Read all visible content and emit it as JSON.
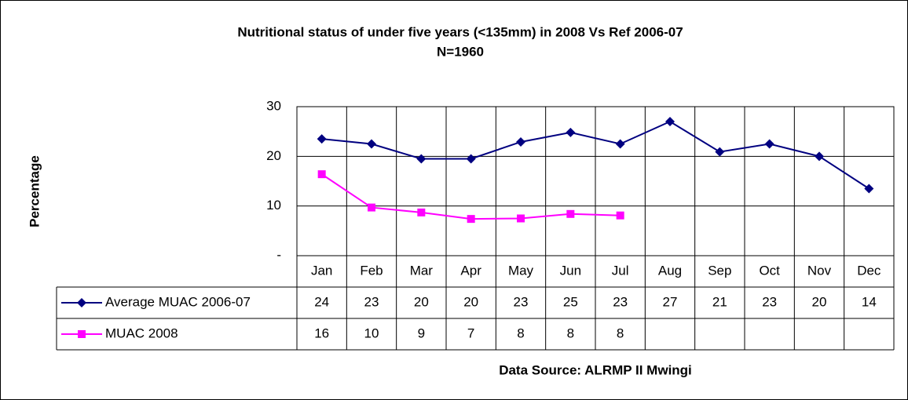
{
  "chart_data": {
    "type": "line",
    "title": "Nutritional status of under five years (<135mm) in 2008 Vs Ref 2006-07",
    "subtitle": "N=1960",
    "y_label": "Percentage",
    "source": "Data Source: ALRMP II Mwingi",
    "categories": [
      "Jan",
      "Feb",
      "Mar",
      "Apr",
      "May",
      "Jun",
      "Jul",
      "Aug",
      "Sep",
      "Oct",
      "Nov",
      "Dec"
    ],
    "series": [
      {
        "name": "Average MUAC 2006-07",
        "color": "#000080",
        "marker": "diamond",
        "values": [
          23.5,
          22.5,
          19.5,
          19.5,
          22.9,
          24.8,
          22.5,
          27.0,
          20.9,
          22.5,
          20.0,
          13.5
        ],
        "value_labels": [
          "24",
          "23",
          "20",
          "20",
          "23",
          "25",
          "23",
          "27",
          "21",
          "23",
          "20",
          "14"
        ]
      },
      {
        "name": "MUAC 2008",
        "color": "#ff00ff",
        "marker": "square",
        "values": [
          16.4,
          9.7,
          8.7,
          7.4,
          7.5,
          8.4,
          8.1,
          null,
          null,
          null,
          null,
          null
        ],
        "value_labels": [
          "16",
          "10",
          "9",
          "7",
          "8",
          "8",
          "8",
          null,
          null,
          null,
          null,
          null
        ]
      }
    ],
    "ylim": [
      0,
      30
    ],
    "yticks": [
      {
        "value": 0,
        "label": "-"
      },
      10,
      20,
      30
    ],
    "grid": true
  }
}
